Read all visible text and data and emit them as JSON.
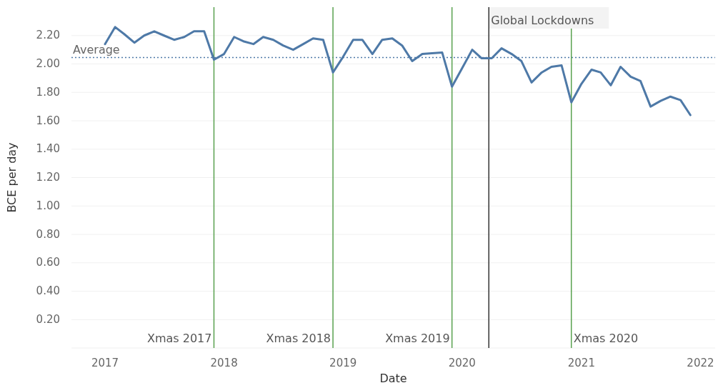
{
  "chart_data": {
    "type": "line",
    "xlabel": "Date",
    "ylabel": "BCE per day",
    "x": [
      "2017-01",
      "2017-02",
      "2017-03",
      "2017-04",
      "2017-05",
      "2017-06",
      "2017-07",
      "2017-08",
      "2017-09",
      "2017-10",
      "2017-11",
      "2017-12",
      "2018-01",
      "2018-02",
      "2018-03",
      "2018-04",
      "2018-05",
      "2018-06",
      "2018-07",
      "2018-08",
      "2018-09",
      "2018-10",
      "2018-11",
      "2018-12",
      "2019-01",
      "2019-02",
      "2019-03",
      "2019-04",
      "2019-05",
      "2019-06",
      "2019-07",
      "2019-08",
      "2019-09",
      "2019-10",
      "2019-11",
      "2019-12",
      "2020-01",
      "2020-02",
      "2020-03",
      "2020-04",
      "2020-05",
      "2020-06",
      "2020-07",
      "2020-08",
      "2020-09",
      "2020-10",
      "2020-11",
      "2020-12",
      "2021-01",
      "2021-02",
      "2021-03",
      "2021-04",
      "2021-05",
      "2021-06",
      "2021-07",
      "2021-08",
      "2021-09",
      "2021-10",
      "2021-11",
      "2021-12"
    ],
    "series": [
      {
        "color": "#4e79a7",
        "values": [
          2.14,
          2.26,
          2.21,
          2.15,
          2.2,
          2.23,
          2.2,
          2.17,
          2.19,
          2.23,
          2.23,
          2.03,
          2.07,
          2.19,
          2.16,
          2.14,
          2.19,
          2.17,
          2.13,
          2.1,
          2.14,
          2.18,
          2.17,
          1.94,
          2.05,
          2.17,
          2.17,
          2.07,
          2.17,
          2.18,
          2.13,
          2.02,
          2.07,
          2.075,
          2.08,
          1.84,
          1.97,
          2.1,
          2.04,
          2.04,
          2.11,
          2.07,
          2.02,
          1.87,
          1.94,
          1.98,
          1.99,
          1.73,
          1.86,
          1.96,
          1.94,
          1.85,
          1.98,
          1.91,
          1.88,
          1.7,
          1.74,
          1.77,
          1.745,
          1.64
        ]
      }
    ],
    "xlim": [
      "2016-09-20",
      "2022-02-15"
    ],
    "xticks": [
      {
        "value": "2017-01-01",
        "label": "2017"
      },
      {
        "value": "2018-01-01",
        "label": "2018"
      },
      {
        "value": "2019-01-01",
        "label": "2019"
      },
      {
        "value": "2020-01-01",
        "label": "2020"
      },
      {
        "value": "2021-01-01",
        "label": "2021"
      },
      {
        "value": "2022-01-01",
        "label": "2022"
      }
    ],
    "ylim": [
      0,
      2.4
    ],
    "yticks": [
      {
        "value": 0.2,
        "label": "0.20"
      },
      {
        "value": 0.4,
        "label": "0.40"
      },
      {
        "value": 0.6,
        "label": "0.60"
      },
      {
        "value": 0.8,
        "label": "0.80"
      },
      {
        "value": 1.0,
        "label": "1.00"
      },
      {
        "value": 1.2,
        "label": "1.20"
      },
      {
        "value": 1.4,
        "label": "1.40"
      },
      {
        "value": 1.6,
        "label": "1.60"
      },
      {
        "value": 1.8,
        "label": "1.80"
      },
      {
        "value": 2.0,
        "label": "2.00"
      },
      {
        "value": 2.2,
        "label": "2.20"
      }
    ],
    "grid": "y",
    "marker": "none",
    "line_style": "solid",
    "ref_lines": [
      {
        "axis": "y",
        "value": 2.045,
        "label": "Average",
        "color": "#4e79a7",
        "line_style": "dotted"
      },
      {
        "axis": "x",
        "value": "2017-12-01",
        "label": "Xmas 2017",
        "color": "#59a14f",
        "line_style": "solid"
      },
      {
        "axis": "x",
        "value": "2018-12-01",
        "label": "Xmas 2018",
        "color": "#59a14f",
        "line_style": "solid"
      },
      {
        "axis": "x",
        "value": "2019-12-01",
        "label": "Xmas 2019",
        "color": "#59a14f",
        "line_style": "solid"
      },
      {
        "axis": "x",
        "value": "2020-12-01",
        "label": "Xmas 2020",
        "color": "#59a14f",
        "line_style": "solid"
      },
      {
        "axis": "x",
        "value": "2020-03-23",
        "label": "Global Lockdowns",
        "color": "#333333",
        "line_style": "solid"
      }
    ]
  }
}
